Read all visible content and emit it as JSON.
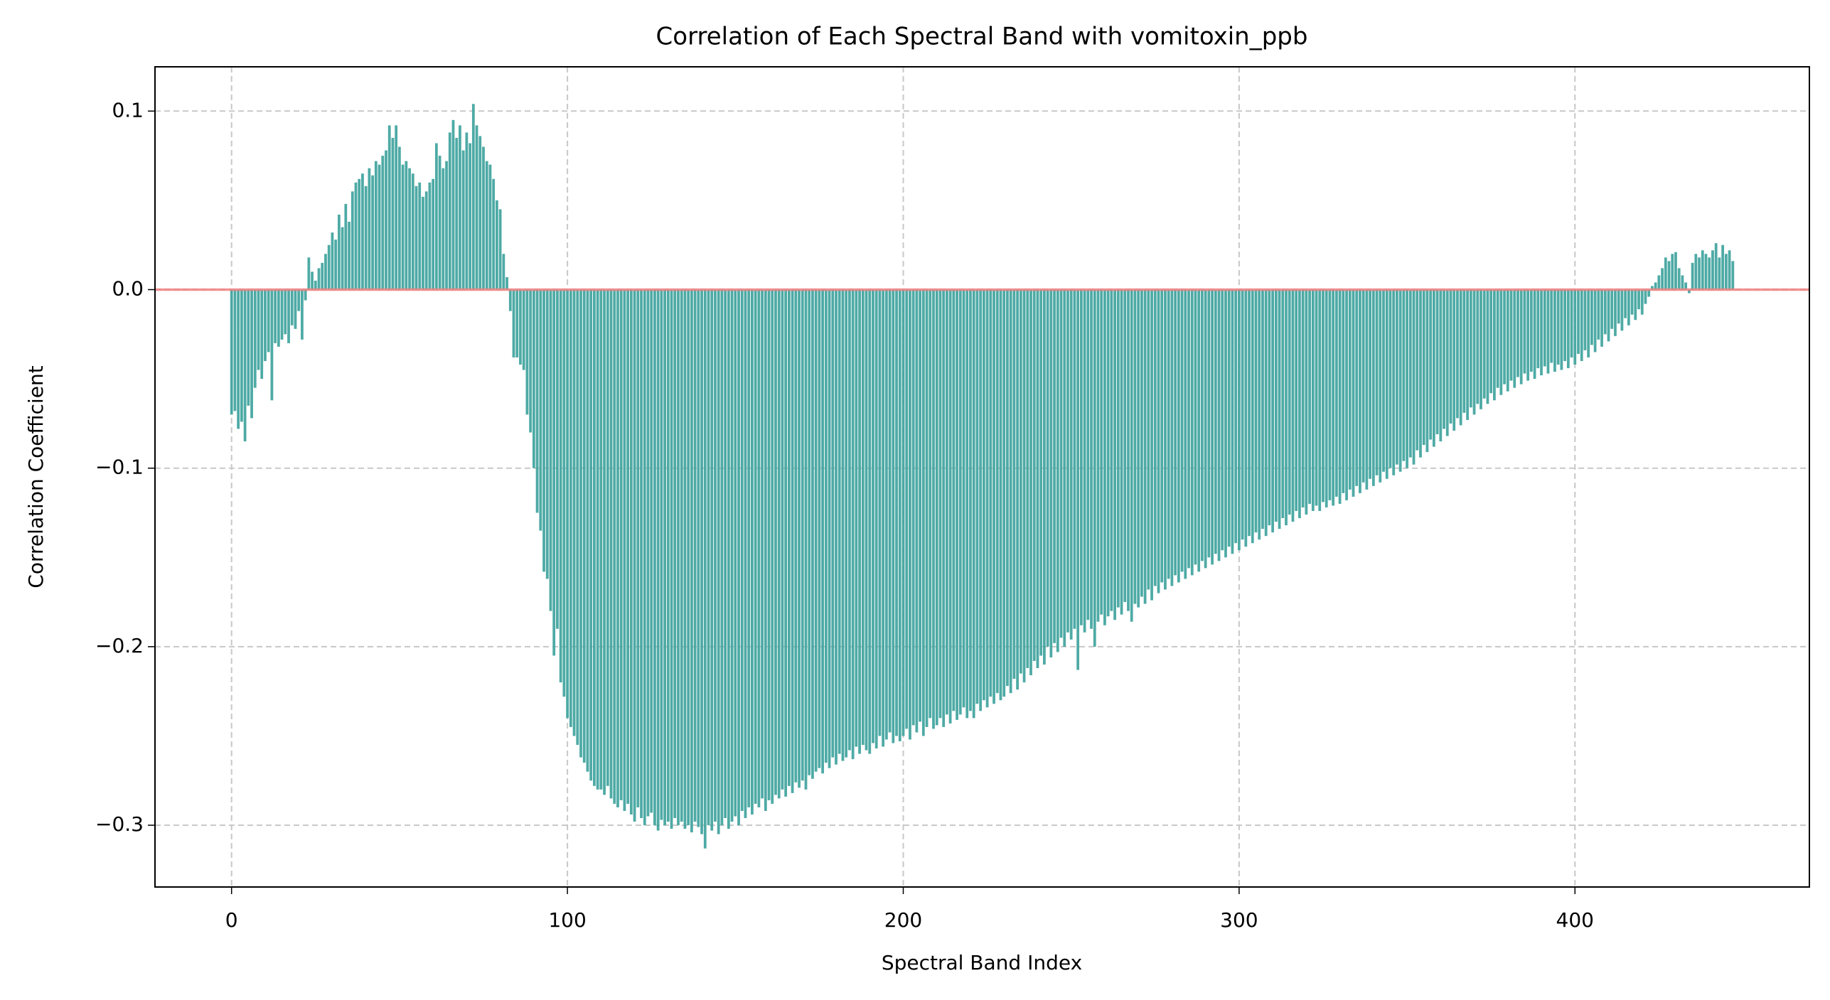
{
  "chart_data": {
    "type": "bar",
    "title": "Correlation of Each Spectral Band with vomitoxin_ppb",
    "xlabel": "Spectral Band Index",
    "ylabel": "Correlation Coefficient",
    "color": "#45a5a0",
    "reference_line": {
      "y": 0,
      "color": "#f08080"
    },
    "grid": true,
    "xlim": [
      -22.8,
      469.8
    ],
    "ylim": [
      -0.3346,
      0.1248
    ],
    "xticks": [
      0,
      100,
      200,
      300,
      400
    ],
    "yticks": [
      {
        "value": -0.3,
        "label": "−0.3"
      },
      {
        "value": -0.2,
        "label": "−0.2"
      },
      {
        "value": -0.1,
        "label": "−0.1"
      },
      {
        "value": 0,
        "label": "0.0"
      },
      0.1
    ],
    "x": [
      0,
      1,
      2,
      3,
      4,
      5,
      6,
      7,
      8,
      9,
      10,
      11,
      12,
      13,
      14,
      15,
      16,
      17,
      18,
      19,
      20,
      21,
      22,
      23,
      24,
      25,
      26,
      27,
      28,
      29,
      30,
      31,
      32,
      33,
      34,
      35,
      36,
      37,
      38,
      39,
      40,
      41,
      42,
      43,
      44,
      45,
      46,
      47,
      48,
      49,
      50,
      51,
      52,
      53,
      54,
      55,
      56,
      57,
      58,
      59,
      60,
      61,
      62,
      63,
      64,
      65,
      66,
      67,
      68,
      69,
      70,
      71,
      72,
      73,
      74,
      75,
      76,
      77,
      78,
      79,
      80,
      81,
      82,
      83,
      84,
      85,
      86,
      87,
      88,
      89,
      90,
      91,
      92,
      93,
      94,
      95,
      96,
      97,
      98,
      99,
      100,
      101,
      102,
      103,
      104,
      105,
      106,
      107,
      108,
      109,
      110,
      111,
      112,
      113,
      114,
      115,
      116,
      117,
      118,
      119,
      120,
      121,
      122,
      123,
      124,
      125,
      126,
      127,
      128,
      129,
      130,
      131,
      132,
      133,
      134,
      135,
      136,
      137,
      138,
      139,
      140,
      141,
      142,
      143,
      144,
      145,
      146,
      147,
      148,
      149,
      150,
      151,
      152,
      153,
      154,
      155,
      156,
      157,
      158,
      159,
      160,
      161,
      162,
      163,
      164,
      165,
      166,
      167,
      168,
      169,
      170,
      171,
      172,
      173,
      174,
      175,
      176,
      177,
      178,
      179,
      180,
      181,
      182,
      183,
      184,
      185,
      186,
      187,
      188,
      189,
      190,
      191,
      192,
      193,
      194,
      195,
      196,
      197,
      198,
      199,
      200,
      201,
      202,
      203,
      204,
      205,
      206,
      207,
      208,
      209,
      210,
      211,
      212,
      213,
      214,
      215,
      216,
      217,
      218,
      219,
      220,
      221,
      222,
      223,
      224,
      225,
      226,
      227,
      228,
      229,
      230,
      231,
      232,
      233,
      234,
      235,
      236,
      237,
      238,
      239,
      240,
      241,
      242,
      243,
      244,
      245,
      246,
      247,
      248,
      249,
      250,
      251,
      252,
      253,
      254,
      255,
      256,
      257,
      258,
      259,
      260,
      261,
      262,
      263,
      264,
      265,
      266,
      267,
      268,
      269,
      270,
      271,
      272,
      273,
      274,
      275,
      276,
      277,
      278,
      279,
      280,
      281,
      282,
      283,
      284,
      285,
      286,
      287,
      288,
      289,
      290,
      291,
      292,
      293,
      294,
      295,
      296,
      297,
      298,
      299,
      300,
      301,
      302,
      303,
      304,
      305,
      306,
      307,
      308,
      309,
      310,
      311,
      312,
      313,
      314,
      315,
      316,
      317,
      318,
      319,
      320,
      321,
      322,
      323,
      324,
      325,
      326,
      327,
      328,
      329,
      330,
      331,
      332,
      333,
      334,
      335,
      336,
      337,
      338,
      339,
      340,
      341,
      342,
      343,
      344,
      345,
      346,
      347,
      348,
      349,
      350,
      351,
      352,
      353,
      354,
      355,
      356,
      357,
      358,
      359,
      360,
      361,
      362,
      363,
      364,
      365,
      366,
      367,
      368,
      369,
      370,
      371,
      372,
      373,
      374,
      375,
      376,
      377,
      378,
      379,
      380,
      381,
      382,
      383,
      384,
      385,
      386,
      387,
      388,
      389,
      390,
      391,
      392,
      393,
      394,
      395,
      396,
      397,
      398,
      399,
      400,
      401,
      402,
      403,
      404,
      405,
      406,
      407,
      408,
      409,
      410,
      411,
      412,
      413,
      414,
      415,
      416,
      417,
      418,
      419,
      420,
      421,
      422,
      423,
      424,
      425,
      426,
      427,
      428,
      429,
      430,
      431,
      432,
      433,
      434,
      435,
      436,
      437,
      438,
      439,
      440,
      441,
      442,
      443,
      444,
      445,
      446,
      447
    ],
    "values": [
      -0.07,
      -0.068,
      -0.078,
      -0.074,
      -0.085,
      -0.065,
      -0.072,
      -0.055,
      -0.045,
      -0.05,
      -0.04,
      -0.035,
      -0.062,
      -0.03,
      -0.032,
      -0.028,
      -0.025,
      -0.03,
      -0.02,
      -0.022,
      -0.012,
      -0.028,
      -0.006,
      0.018,
      0.01,
      0.005,
      0.012,
      0.015,
      0.02,
      0.025,
      0.032,
      0.028,
      0.042,
      0.035,
      0.048,
      0.038,
      0.055,
      0.06,
      0.062,
      0.065,
      0.058,
      0.068,
      0.064,
      0.072,
      0.07,
      0.075,
      0.078,
      0.092,
      0.085,
      0.092,
      0.08,
      0.07,
      0.072,
      0.068,
      0.065,
      0.058,
      0.06,
      0.052,
      0.055,
      0.06,
      0.062,
      0.082,
      0.075,
      0.068,
      0.072,
      0.088,
      0.095,
      0.085,
      0.092,
      0.078,
      0.088,
      0.082,
      0.104,
      0.092,
      0.086,
      0.08,
      0.072,
      0.07,
      0.062,
      0.05,
      0.045,
      0.02,
      0.007,
      -0.012,
      -0.038,
      -0.038,
      -0.042,
      -0.045,
      -0.07,
      -0.08,
      -0.1,
      -0.125,
      -0.135,
      -0.158,
      -0.162,
      -0.18,
      -0.205,
      -0.19,
      -0.22,
      -0.228,
      -0.24,
      -0.245,
      -0.25,
      -0.255,
      -0.262,
      -0.265,
      -0.27,
      -0.275,
      -0.278,
      -0.28,
      -0.28,
      -0.283,
      -0.278,
      -0.285,
      -0.288,
      -0.29,
      -0.286,
      -0.292,
      -0.288,
      -0.294,
      -0.298,
      -0.29,
      -0.296,
      -0.3,
      -0.295,
      -0.293,
      -0.3,
      -0.303,
      -0.297,
      -0.3,
      -0.298,
      -0.302,
      -0.296,
      -0.3,
      -0.298,
      -0.302,
      -0.3,
      -0.304,
      -0.298,
      -0.301,
      -0.305,
      -0.313,
      -0.3,
      -0.303,
      -0.298,
      -0.305,
      -0.3,
      -0.296,
      -0.302,
      -0.298,
      -0.295,
      -0.3,
      -0.292,
      -0.296,
      -0.29,
      -0.294,
      -0.288,
      -0.29,
      -0.285,
      -0.292,
      -0.286,
      -0.288,
      -0.283,
      -0.285,
      -0.28,
      -0.284,
      -0.278,
      -0.282,
      -0.276,
      -0.279,
      -0.275,
      -0.28,
      -0.272,
      -0.274,
      -0.27,
      -0.268,
      -0.271,
      -0.265,
      -0.268,
      -0.262,
      -0.266,
      -0.26,
      -0.264,
      -0.262,
      -0.258,
      -0.263,
      -0.256,
      -0.26,
      -0.255,
      -0.258,
      -0.26,
      -0.254,
      -0.257,
      -0.25,
      -0.256,
      -0.252,
      -0.248,
      -0.254,
      -0.25,
      -0.253,
      -0.25,
      -0.246,
      -0.252,
      -0.244,
      -0.248,
      -0.242,
      -0.25,
      -0.245,
      -0.24,
      -0.246,
      -0.244,
      -0.24,
      -0.245,
      -0.238,
      -0.243,
      -0.236,
      -0.241,
      -0.238,
      -0.234,
      -0.24,
      -0.236,
      -0.24,
      -0.232,
      -0.236,
      -0.23,
      -0.234,
      -0.228,
      -0.232,
      -0.226,
      -0.23,
      -0.228,
      -0.222,
      -0.226,
      -0.218,
      -0.224,
      -0.215,
      -0.22,
      -0.212,
      -0.216,
      -0.208,
      -0.212,
      -0.205,
      -0.21,
      -0.2,
      -0.206,
      -0.198,
      -0.203,
      -0.195,
      -0.2,
      -0.192,
      -0.196,
      -0.19,
      -0.213,
      -0.188,
      -0.192,
      -0.185,
      -0.19,
      -0.2,
      -0.186,
      -0.182,
      -0.188,
      -0.183,
      -0.18,
      -0.185,
      -0.178,
      -0.182,
      -0.175,
      -0.18,
      -0.186,
      -0.176,
      -0.178,
      -0.172,
      -0.176,
      -0.168,
      -0.174,
      -0.166,
      -0.17,
      -0.164,
      -0.168,
      -0.162,
      -0.166,
      -0.16,
      -0.164,
      -0.158,
      -0.162,
      -0.156,
      -0.16,
      -0.154,
      -0.158,
      -0.152,
      -0.156,
      -0.15,
      -0.154,
      -0.148,
      -0.152,
      -0.146,
      -0.15,
      -0.144,
      -0.148,
      -0.142,
      -0.146,
      -0.14,
      -0.144,
      -0.138,
      -0.142,
      -0.136,
      -0.14,
      -0.134,
      -0.138,
      -0.132,
      -0.136,
      -0.13,
      -0.134,
      -0.128,
      -0.132,
      -0.126,
      -0.13,
      -0.124,
      -0.128,
      -0.122,
      -0.126,
      -0.12,
      -0.124,
      -0.121,
      -0.124,
      -0.119,
      -0.122,
      -0.118,
      -0.121,
      -0.116,
      -0.12,
      -0.114,
      -0.118,
      -0.112,
      -0.116,
      -0.11,
      -0.114,
      -0.108,
      -0.112,
      -0.106,
      -0.11,
      -0.104,
      -0.108,
      -0.102,
      -0.106,
      -0.1,
      -0.104,
      -0.098,
      -0.102,
      -0.096,
      -0.1,
      -0.094,
      -0.098,
      -0.09,
      -0.094,
      -0.087,
      -0.091,
      -0.084,
      -0.088,
      -0.081,
      -0.085,
      -0.078,
      -0.082,
      -0.075,
      -0.079,
      -0.072,
      -0.076,
      -0.069,
      -0.073,
      -0.066,
      -0.07,
      -0.064,
      -0.067,
      -0.061,
      -0.064,
      -0.058,
      -0.062,
      -0.055,
      -0.059,
      -0.053,
      -0.057,
      -0.051,
      -0.055,
      -0.049,
      -0.053,
      -0.047,
      -0.051,
      -0.046,
      -0.05,
      -0.044,
      -0.048,
      -0.043,
      -0.047,
      -0.041,
      -0.046,
      -0.042,
      -0.045,
      -0.04,
      -0.044,
      -0.038,
      -0.042,
      -0.036,
      -0.04,
      -0.034,
      -0.038,
      -0.031,
      -0.035,
      -0.028,
      -0.032,
      -0.025,
      -0.029,
      -0.022,
      -0.026,
      -0.019,
      -0.023,
      -0.016,
      -0.02,
      -0.014,
      -0.017,
      -0.011,
      -0.014,
      -0.008,
      -0.004,
      0.002,
      0.004,
      0.008,
      0.012,
      0.018,
      0.016,
      0.02,
      0.021,
      0.012,
      0.008,
      0.004,
      -0.002,
      0.015,
      0.02,
      0.018,
      0.022,
      0.02,
      0.018,
      0.022,
      0.026,
      0.018,
      0.025,
      0.02,
      0.022,
      0.016
    ]
  }
}
